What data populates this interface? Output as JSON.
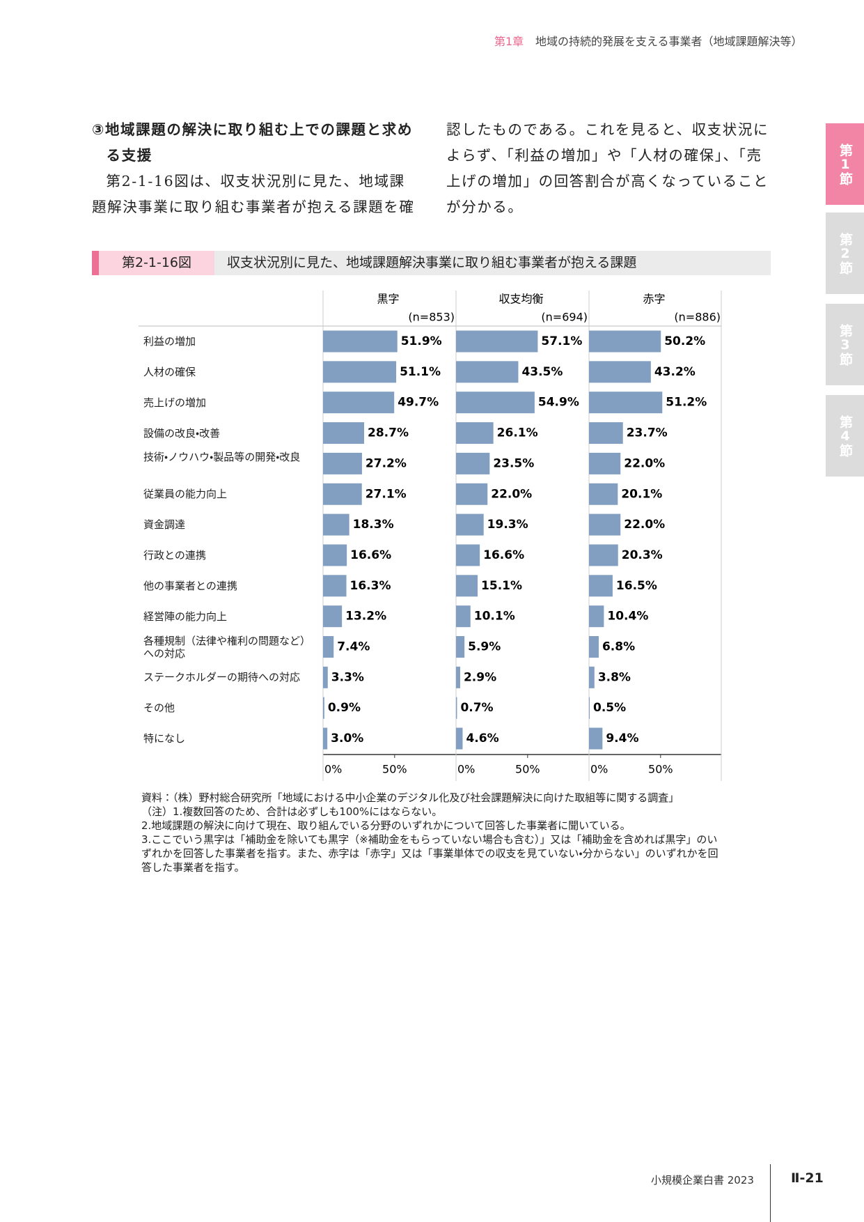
{
  "header": {
    "chapter": "第1章",
    "title": "地域の持続的発展を支える事業者（地域課題解決等）"
  },
  "side_tabs": [
    "第1節",
    "第2節",
    "第3節",
    "第4節"
  ],
  "section": {
    "heading": "③地域課題の解決に取り組む上での課題と求める支援",
    "paragraph": "第2-1-16図は、収支状況別に見た、地域課題解決事業に取り組む事業者が抱える課題を確認したものである。これを見ると、収支状況によらず、「利益の増加」や「人材の確保」、「売上げの増加」の回答割合が高くなっていることが分かる。"
  },
  "figure": {
    "number": "第2-1-16図",
    "title": "収支状況別に見た、地域課題解決事業に取り組む事業者が抱える課題"
  },
  "chart_data": {
    "type": "bar",
    "orientation": "horizontal",
    "layout": "panels",
    "categories": [
      "利益の増加",
      "人材の確保",
      "売上げの増加",
      "設備の改良・改善",
      "技術・ノウハウ・製品等の開発・改良",
      "従業員の能力向上",
      "資金調達",
      "行政との連携",
      "他の事業者との連携",
      "経営陣の能力向上",
      "各種規制（法律や権利の問題など）への対応",
      "ステークホルダーの期待への対応",
      "その他",
      "特になし"
    ],
    "series": [
      {
        "name": "黒字",
        "n_label": "(n=853)",
        "color": "#829fc1",
        "values": [
          51.9,
          51.1,
          49.7,
          28.7,
          27.2,
          27.1,
          18.3,
          16.6,
          16.3,
          13.2,
          7.4,
          3.3,
          0.9,
          3.0
        ],
        "value_labels": [
          "51.9%",
          "51.1%",
          "49.7%",
          "28.7%",
          "27.2%",
          "27.1%",
          "18.3%",
          "16.6%",
          "16.3%",
          "13.2%",
          "7.4%",
          "3.3%",
          "0.9%",
          "3.0%"
        ]
      },
      {
        "name": "収支均衡",
        "n_label": "(n=694)",
        "color": "#829fc1",
        "values": [
          57.1,
          43.5,
          54.9,
          26.1,
          23.5,
          22.0,
          19.3,
          16.6,
          15.1,
          10.1,
          5.9,
          2.9,
          0.7,
          4.6
        ],
        "value_labels": [
          "57.1%",
          "43.5%",
          "54.9%",
          "26.1%",
          "23.5%",
          "22.0%",
          "19.3%",
          "16.6%",
          "15.1%",
          "10.1%",
          "5.9%",
          "2.9%",
          "0.7%",
          "4.6%"
        ]
      },
      {
        "name": "赤字",
        "n_label": "(n=886)",
        "color": "#829fc1",
        "values": [
          50.2,
          43.2,
          51.2,
          23.7,
          22.0,
          20.1,
          22.0,
          20.3,
          16.5,
          10.4,
          6.8,
          3.8,
          0.5,
          9.4
        ],
        "value_labels": [
          "50.2%",
          "43.2%",
          "51.2%",
          "23.7%",
          "22.0%",
          "20.1%",
          "22.0%",
          "20.3%",
          "16.5%",
          "10.4%",
          "6.8%",
          "3.8%",
          "0.5%",
          "9.4%"
        ]
      }
    ],
    "xlim": [
      0,
      92.4
    ],
    "xticks": [
      {
        "value": 0,
        "label": "0%"
      },
      {
        "value": 50,
        "label": "50%"
      }
    ]
  },
  "notes": {
    "source": "資料：（株）野村総合研究所「地域における中小企業のデジタル化及び社会課題解決に向けた取組等に関する調査」",
    "items": [
      "（注）1.複数回答のため、合計は必ずしも100%にはならない。",
      "2.地域課題の解決に向けて現在、取り組んでいる分野のいずれかについて回答した事業者に聞いている。",
      "3.ここでいう黒字は「補助金を除いても黒字（※補助金をもらっていない場合も含む）」又は「補助金を含めれば黒字」のいずれかを回答した事業者を指す。また、赤字は「赤字」又は「事業単体での収支を見ていない・分からない」のいずれかを回答した事業者を指す。"
    ]
  },
  "footer": {
    "book": "小規模企業白書 2023",
    "page": "Ⅱ-21"
  }
}
